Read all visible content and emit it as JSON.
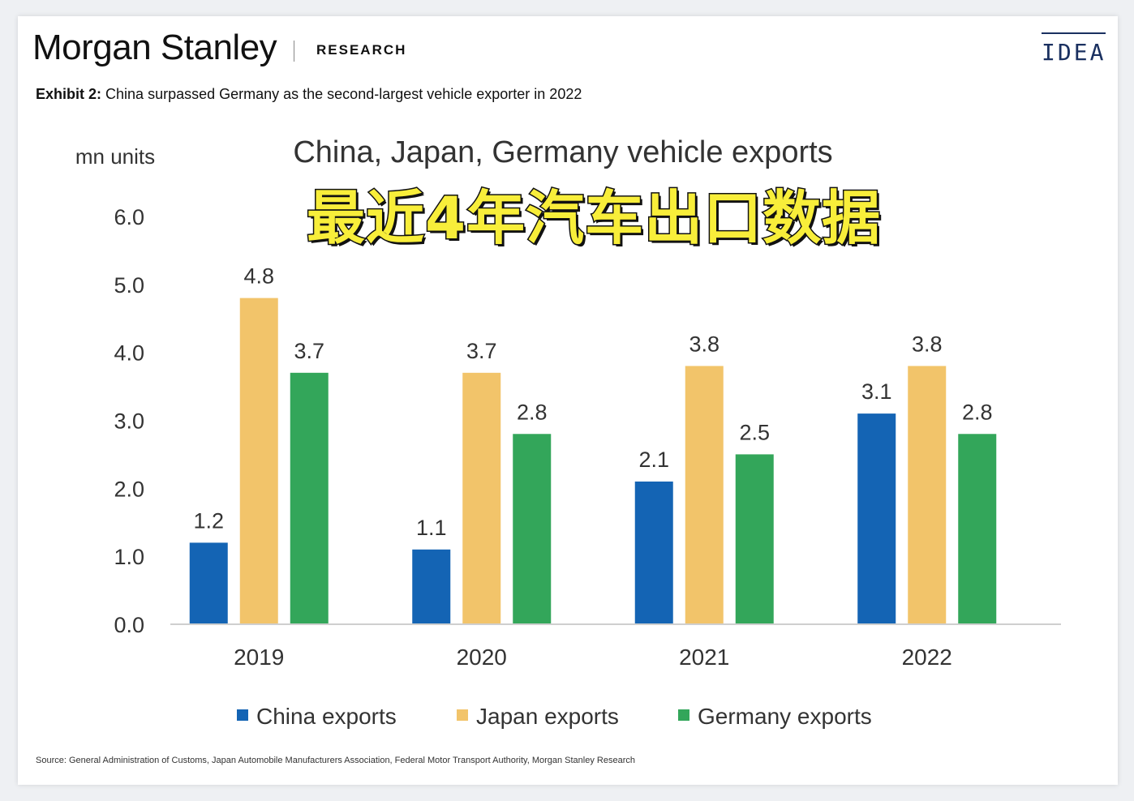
{
  "header": {
    "brand": "Morgan Stanley",
    "section": "RESEARCH",
    "badge": "IDEA"
  },
  "exhibit": {
    "label": "Exhibit 2:",
    "text": "China surpassed Germany as the second-largest vehicle exporter in 2022"
  },
  "overlay_caption": "最近4年汽车出口数据",
  "source_note": "Source: General Administration of Customs, Japan Automobile Manufacturers Association, Federal Motor Transport Authority, Morgan Stanley Research",
  "colors": {
    "china": "#1464b4",
    "japan": "#f2c46a",
    "germany": "#33a65a",
    "axis": "#cfcfcf",
    "text": "#333333"
  },
  "chart_data": {
    "type": "bar",
    "title": "China, Japan, Germany vehicle exports",
    "ylabel": "mn units",
    "xlabel": "",
    "ylim": [
      0,
      6
    ],
    "yticks": [
      "0.0",
      "1.0",
      "2.0",
      "3.0",
      "4.0",
      "5.0",
      "6.0"
    ],
    "categories": [
      "2019",
      "2020",
      "2021",
      "2022"
    ],
    "series": [
      {
        "name": "China exports",
        "color": "#1464b4",
        "values": [
          1.2,
          1.1,
          2.1,
          3.1
        ]
      },
      {
        "name": "Japan exports",
        "color": "#f2c46a",
        "values": [
          4.8,
          3.7,
          3.8,
          3.8
        ]
      },
      {
        "name": "Germany exports",
        "color": "#33a65a",
        "values": [
          3.7,
          2.8,
          2.5,
          2.8
        ]
      }
    ],
    "legend": "bottom",
    "grid": false
  }
}
